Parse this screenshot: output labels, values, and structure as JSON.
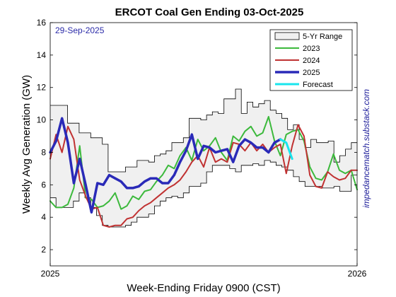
{
  "chart_data": {
    "type": "line",
    "title": "ERCOT Coal Gen Ending 03-Oct-2025",
    "xlabel": "Week-Ending Friday 0900 (CST)",
    "ylabel": "Weekly Avg Generation (GW)",
    "annotation": "29-Sep-2025",
    "source_label": "impedancematch.substack.com",
    "xlim": [
      1,
      53
    ],
    "ylim": [
      1,
      16
    ],
    "yticks": [
      2,
      4,
      6,
      8,
      10,
      12,
      14,
      16
    ],
    "xtick_labels": [
      {
        "week": 1,
        "label": "2025"
      },
      {
        "week": 53,
        "label": "2026"
      }
    ],
    "grid": false,
    "legend_position": "top-right",
    "range": {
      "name": "5-Yr Range",
      "fill": "#f0f0f0",
      "stroke": "#000000",
      "upper": [
        10.9,
        10.9,
        10.9,
        9.8,
        9.8,
        9.2,
        9.2,
        8.9,
        8.9,
        8.5,
        6.8,
        6.8,
        6.8,
        7.1,
        7.1,
        7.5,
        7.5,
        7.4,
        7.8,
        7.9,
        8.1,
        8.6,
        8.6,
        8.9,
        10.1,
        10.1,
        10.0,
        10.3,
        10.5,
        10.4,
        11.3,
        11.3,
        11.9,
        10.4,
        11.1,
        10.8,
        11.0,
        11.2,
        10.6,
        10.4,
        10.1,
        9.4,
        9.7,
        8.8,
        8.3,
        8.8,
        8.6,
        8.6,
        8.7,
        7.4,
        7.8,
        8.2,
        8.6
      ],
      "lower": [
        5.2,
        4.6,
        4.6,
        4.6,
        5.0,
        5.5,
        5.2,
        4.6,
        4.1,
        3.5,
        3.4,
        3.4,
        3.4,
        3.5,
        3.7,
        4.0,
        4.0,
        4.2,
        4.7,
        5.0,
        5.2,
        5.3,
        5.2,
        5.5,
        5.9,
        5.9,
        6.1,
        6.8,
        7.2,
        7.2,
        7.2,
        7.0,
        6.8,
        7.2,
        7.2,
        7.3,
        7.2,
        7.5,
        7.4,
        7.2,
        7.1,
        6.9,
        6.5,
        6.2,
        5.9,
        5.9,
        5.9,
        5.8,
        5.8,
        5.9,
        5.6,
        5.6,
        6.6
      ]
    },
    "series": [
      {
        "name": "2023",
        "color": "#3cb93c",
        "width": 2,
        "x": [
          1,
          2,
          3,
          4,
          5,
          6,
          7,
          8,
          9,
          10,
          11,
          12,
          13,
          14,
          15,
          16,
          17,
          18,
          19,
          20,
          21,
          22,
          23,
          24,
          25,
          26,
          27,
          28,
          29,
          30,
          31,
          32,
          33,
          34,
          35,
          36,
          37,
          38,
          39,
          40,
          41,
          42,
          43,
          44,
          45,
          46,
          47,
          48,
          49,
          50,
          51,
          52,
          53
        ],
        "y": [
          5.0,
          4.6,
          4.6,
          4.8,
          5.8,
          8.4,
          5.2,
          5.1,
          4.6,
          4.7,
          5.0,
          5.5,
          4.5,
          4.7,
          5.3,
          5.1,
          5.6,
          5.7,
          6.2,
          6.6,
          7.2,
          7.0,
          7.8,
          8.3,
          7.5,
          8.8,
          8.1,
          8.4,
          8.9,
          8.0,
          7.5,
          9.0,
          8.7,
          9.3,
          9.6,
          9.0,
          9.2,
          10.2,
          8.7,
          7.8,
          9.1,
          9.3,
          9.4,
          8.7,
          7.1,
          6.4,
          6.3,
          6.8,
          7.9,
          6.9,
          6.7,
          6.9,
          5.7
        ]
      },
      {
        "name": "2024",
        "color": "#c03232",
        "width": 2,
        "x": [
          1,
          2,
          3,
          4,
          5,
          6,
          7,
          8,
          9,
          10,
          11,
          12,
          13,
          14,
          15,
          16,
          17,
          18,
          19,
          20,
          21,
          22,
          23,
          24,
          25,
          26,
          27,
          28,
          29,
          30,
          31,
          32,
          33,
          34,
          35,
          36,
          37,
          38,
          39,
          40,
          41,
          42,
          43,
          44,
          45,
          46,
          47,
          48,
          49,
          50,
          51,
          52,
          53
        ],
        "y": [
          7.6,
          9.1,
          8.0,
          9.6,
          8.8,
          6.3,
          5.3,
          4.5,
          4.6,
          3.5,
          3.4,
          3.5,
          3.5,
          3.9,
          4.0,
          4.4,
          4.7,
          4.9,
          5.2,
          5.5,
          5.8,
          6.0,
          6.3,
          6.8,
          7.4,
          7.8,
          7.1,
          8.3,
          7.4,
          7.6,
          7.4,
          8.6,
          8.5,
          8.1,
          8.6,
          8.1,
          8.5,
          8.0,
          8.3,
          8.5,
          6.7,
          8.4,
          9.7,
          9.0,
          6.6,
          5.9,
          5.8,
          6.8,
          6.5,
          6.3,
          6.4,
          6.9,
          6.9
        ]
      },
      {
        "name": "2025",
        "color": "#2a2ab8",
        "width": 3.5,
        "x": [
          1,
          2,
          3,
          4,
          5,
          6,
          7,
          8,
          9,
          10,
          11,
          12,
          13,
          14,
          15,
          16,
          17,
          18,
          19,
          20,
          21,
          22,
          23,
          24,
          25,
          26,
          27,
          28,
          29,
          30,
          31,
          32,
          33,
          34,
          35,
          36,
          37,
          38,
          39,
          40
        ],
        "y": [
          8.0,
          8.7,
          10.1,
          8.6,
          6.1,
          7.6,
          6.0,
          4.3,
          6.1,
          6.0,
          6.6,
          6.4,
          6.2,
          5.8,
          5.8,
          5.9,
          6.2,
          6.4,
          6.4,
          6.1,
          6.1,
          6.6,
          7.4,
          8.1,
          9.1,
          7.6,
          8.4,
          8.3,
          8.0,
          8.1,
          8.2,
          7.4,
          8.4,
          8.8,
          8.6,
          8.3,
          8.3,
          8.0,
          8.6,
          8.8
        ]
      },
      {
        "name": "Forecast",
        "color": "#19e5ee",
        "width": 3,
        "x": [
          40,
          41,
          42
        ],
        "y": [
          8.8,
          8.6,
          7.6
        ]
      }
    ]
  }
}
